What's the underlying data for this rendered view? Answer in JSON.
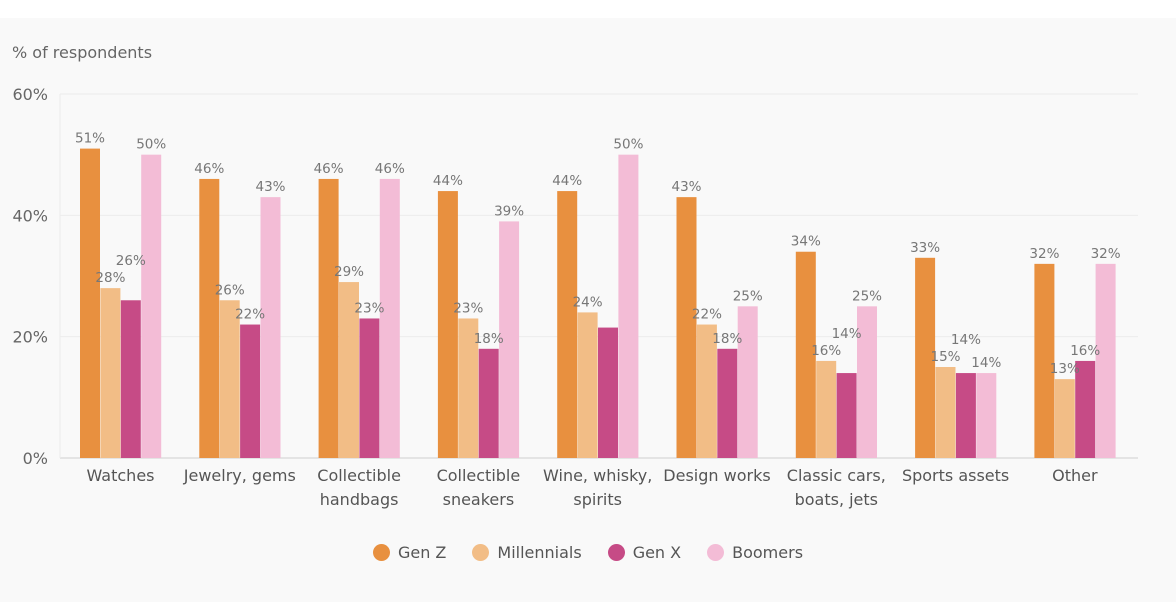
{
  "chart_data": {
    "type": "bar",
    "ylabel": "% of respondents",
    "ylim": [
      0,
      60
    ],
    "yticks": [
      "0%",
      "20%",
      "40%",
      "60%"
    ],
    "grid": true,
    "legend_position": "bottom",
    "categories": [
      [
        "Watches"
      ],
      [
        "Jewelry, gems"
      ],
      [
        "Collectible",
        "handbags"
      ],
      [
        "Collectible",
        "sneakers"
      ],
      [
        "Wine, whisky,",
        "spirits"
      ],
      [
        "Design works"
      ],
      [
        "Classic cars,",
        "boats, jets"
      ],
      [
        "Sports assets"
      ],
      [
        "Other"
      ]
    ],
    "series": [
      {
        "name": "Gen Z",
        "color": "#e8903f",
        "values": [
          51,
          46,
          46,
          44,
          44,
          43,
          34,
          33,
          32
        ],
        "labels": [
          "51%",
          "46%",
          "46%",
          "44%",
          "44%",
          "43%",
          "34%",
          "33%",
          "32%"
        ]
      },
      {
        "name": "Millennials",
        "color": "#f2bd86",
        "values": [
          28,
          26,
          29,
          23,
          24,
          22,
          16,
          15,
          13
        ],
        "labels": [
          "28%",
          "26%",
          "29%",
          "23%",
          "24%",
          "22%",
          "16%",
          "15%",
          "13%"
        ]
      },
      {
        "name": "Gen X",
        "color": "#c64b86",
        "values": [
          26,
          22,
          23,
          18,
          21.5,
          18,
          14,
          14,
          16
        ],
        "labels": [
          "26%",
          "22%",
          "23%",
          "18%",
          "",
          "18%",
          "14%",
          "14%",
          "16%"
        ]
      },
      {
        "name": "Boomers",
        "color": "#f3bcd6",
        "values": [
          50,
          43,
          46,
          39,
          50,
          25,
          25,
          14,
          32
        ],
        "labels": [
          "50%",
          "43%",
          "46%",
          "39%",
          "50%",
          "25%",
          "25%",
          "14%",
          "32%"
        ]
      }
    ]
  }
}
